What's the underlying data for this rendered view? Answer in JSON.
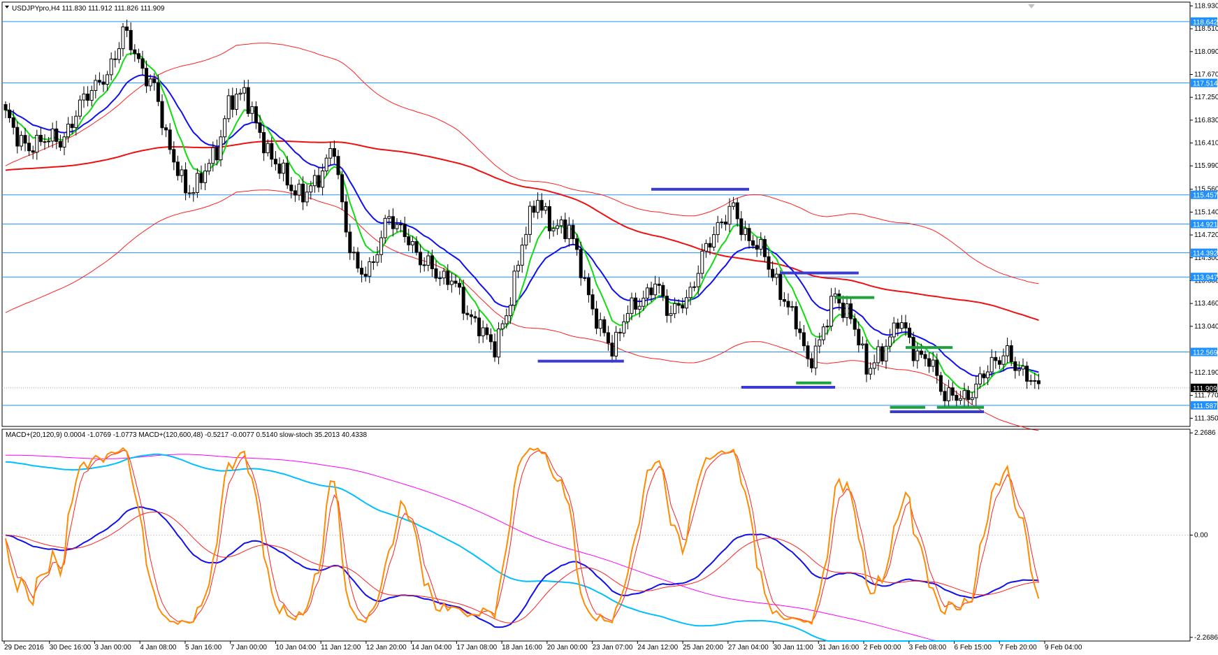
{
  "chart_data": {
    "type": "line",
    "symbol_header": "USDJPYpro,H4  111.830 111.912 111.826 111.909",
    "indicator_header": "MACD+(20,120,9) 0.0004 -1.0769 -1.0773   MACD+(120,600,48) -0.5217 -0.0077 0.5140   slow-stoch 35.2013 40.4338",
    "price_axis": {
      "ylim": [
        111.2,
        119.0
      ],
      "ticks": [
        "118.930",
        "118.510",
        "118.090",
        "117.670",
        "117.250",
        "116.830",
        "116.410",
        "115.990",
        "115.560",
        "115.140",
        "114.720",
        "114.300",
        "113.880",
        "113.460",
        "113.040",
        "112.190",
        "111.770",
        "111.350"
      ]
    },
    "indicator_axis": {
      "ylim": [
        -2.35,
        2.35
      ],
      "ticks": [
        "2.2686",
        "0.00",
        "-2.2686"
      ]
    },
    "horizontal_levels": [
      {
        "value": 118.642,
        "label": "118.642"
      },
      {
        "value": 117.514,
        "label": "117.514"
      },
      {
        "value": 115.457,
        "label": "115.457"
      },
      {
        "value": 114.921,
        "label": "114.921"
      },
      {
        "value": 114.392,
        "label": "114.392"
      },
      {
        "value": 113.947,
        "label": "113.947"
      },
      {
        "value": 112.569,
        "label": "112.569"
      },
      {
        "value": 111.587,
        "label": "111.587"
      }
    ],
    "current_price": {
      "value": 111.909,
      "label": "111.909"
    },
    "x_labels": [
      "29 Dec 2016",
      "30 Dec 16:00",
      "3 Jan 00:00",
      "4 Jan 08:00",
      "5 Jan 16:00",
      "7 Jan 00:00",
      "10 Jan 04:00",
      "11 Jan 12:00",
      "12 Jan 20:00",
      "14 Jan 04:00",
      "17 Jan 08:00",
      "18 Jan 16:00",
      "20 Jan 00:00",
      "23 Jan 07:00",
      "24 Jan 12:00",
      "25 Jan 20:00",
      "27 Jan 04:00",
      "30 Jan 11:00",
      "31 Jan 16:00",
      "2 Feb 00:00",
      "3 Feb 08:00",
      "6 Feb 15:00",
      "7 Feb 20:00",
      "9 Feb 04:00"
    ],
    "price_keyframes": [
      [
        0,
        116.9
      ],
      [
        6,
        116.25
      ],
      [
        10,
        116.55
      ],
      [
        14,
        116.4
      ],
      [
        18,
        116.95
      ],
      [
        22,
        117.45
      ],
      [
        26,
        117.6
      ],
      [
        30,
        118.5
      ],
      [
        34,
        117.9
      ],
      [
        38,
        117.4
      ],
      [
        42,
        116.3
      ],
      [
        46,
        115.5
      ],
      [
        50,
        115.75
      ],
      [
        54,
        116.3
      ],
      [
        57,
        117.1
      ],
      [
        61,
        117.4
      ],
      [
        64,
        116.7
      ],
      [
        68,
        116.15
      ],
      [
        72,
        115.7
      ],
      [
        76,
        115.4
      ],
      [
        80,
        115.8
      ],
      [
        84,
        116.3
      ],
      [
        87,
        114.8
      ],
      [
        90,
        114.0
      ],
      [
        94,
        114.2
      ],
      [
        98,
        115.1
      ],
      [
        102,
        114.7
      ],
      [
        106,
        114.3
      ],
      [
        110,
        114.0
      ],
      [
        114,
        113.9
      ],
      [
        118,
        113.3
      ],
      [
        122,
        112.9
      ],
      [
        125,
        112.7
      ],
      [
        128,
        113.2
      ],
      [
        132,
        114.6
      ],
      [
        136,
        115.4
      ],
      [
        140,
        114.8
      ],
      [
        144,
        114.9
      ],
      [
        148,
        113.8
      ],
      [
        152,
        113.0
      ],
      [
        155,
        112.6
      ],
      [
        158,
        113.2
      ],
      [
        162,
        113.5
      ],
      [
        166,
        113.8
      ],
      [
        170,
        113.3
      ],
      [
        174,
        113.5
      ],
      [
        178,
        114.3
      ],
      [
        182,
        114.9
      ],
      [
        186,
        115.2
      ],
      [
        190,
        114.6
      ],
      [
        194,
        114.4
      ],
      [
        198,
        113.6
      ],
      [
        202,
        113.2
      ],
      [
        205,
        112.3
      ],
      [
        208,
        112.8
      ],
      [
        212,
        113.6
      ],
      [
        216,
        113.2
      ],
      [
        220,
        112.3
      ],
      [
        224,
        112.5
      ],
      [
        228,
        113.2
      ],
      [
        232,
        112.6
      ],
      [
        236,
        112.4
      ],
      [
        240,
        111.8
      ],
      [
        244,
        111.7
      ],
      [
        248,
        111.9
      ],
      [
        252,
        112.4
      ],
      [
        256,
        112.5
      ],
      [
        260,
        112.2
      ],
      [
        263,
        111.95
      ],
      [
        264,
        111.909
      ]
    ],
    "series": [
      {
        "name": "",
        "color": "#00e000",
        "kind": "EMA 8",
        "period": 8
      },
      {
        "name": "",
        "color": "#0000ff",
        "kind": "EMA 21",
        "period": 21
      },
      {
        "name": "",
        "color": "#ff0000",
        "kind": "SMA 120",
        "period": 120
      },
      {
        "name": "",
        "color": "#ff0000",
        "kind": "Envelope upper",
        "period": 60
      },
      {
        "name": "",
        "color": "#ff0000",
        "kind": "Envelope lower",
        "period": 60
      }
    ],
    "indicator_series": [
      {
        "name": "",
        "color": "#ff8c00",
        "kind": "slow-stoch main"
      },
      {
        "name": "",
        "color": "#ff0000",
        "kind": "slow-stoch signal"
      },
      {
        "name": "",
        "color": "#0000ff",
        "kind": "MACD(20,120,9)"
      },
      {
        "name": "",
        "color": "#00bfff",
        "kind": "MACD(120,600,48)"
      },
      {
        "name": "",
        "color": "#ff00ff",
        "kind": "MACD(120,600,48) signal"
      }
    ],
    "drawn_segments": [
      {
        "color": "#3b3bd1",
        "bar_from": 165,
        "bar_to": 190,
        "value": 115.56
      },
      {
        "color": "#3b3bd1",
        "bar_from": 136,
        "bar_to": 158,
        "value": 112.4
      },
      {
        "color": "#3b3bd1",
        "bar_from": 198,
        "bar_to": 218,
        "value": 114.02
      },
      {
        "color": "#3b3bd1",
        "bar_from": 188,
        "bar_to": 212,
        "value": 111.92
      },
      {
        "color": "#3b3bd1",
        "bar_from": 226,
        "bar_to": 250,
        "value": 111.47
      },
      {
        "color": "#1fa23a",
        "bar_from": 212,
        "bar_to": 222,
        "value": 113.57
      },
      {
        "color": "#1fa23a",
        "bar_from": 202,
        "bar_to": 211,
        "value": 112.0
      },
      {
        "color": "#1fa23a",
        "bar_from": 230,
        "bar_to": 242,
        "value": 112.65
      },
      {
        "color": "#1fa23a",
        "bar_from": 226,
        "bar_to": 235,
        "value": 111.55
      },
      {
        "color": "#1fa23a",
        "bar_from": 238,
        "bar_to": 250,
        "value": 111.55
      }
    ]
  }
}
